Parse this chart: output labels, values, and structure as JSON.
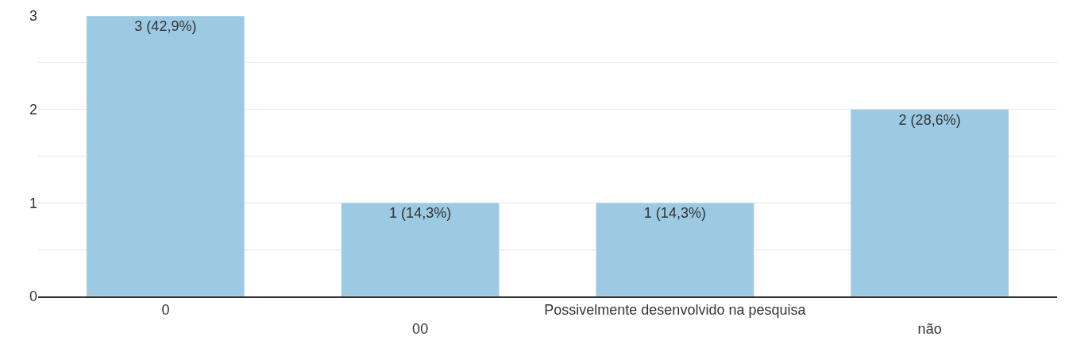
{
  "chart_data": {
    "type": "bar",
    "categories": [
      "0",
      "00",
      "Possivelmente desenvolvido na pesquisa",
      "não"
    ],
    "values": [
      3,
      1,
      1,
      2
    ],
    "value_labels": [
      "3 (42,9%)",
      "1 (14,3%)",
      "1 (14,3%)",
      "2 (28,6%)"
    ],
    "color": "#9ccae3",
    "ylim": [
      0,
      3
    ],
    "yticks": [
      0,
      {
        "value": 0.5,
        "label": null
      },
      1,
      {
        "value": 1.5,
        "label": null
      },
      2,
      {
        "value": 2.5,
        "label": null
      },
      3
    ],
    "grid": "y",
    "legend": false
  }
}
